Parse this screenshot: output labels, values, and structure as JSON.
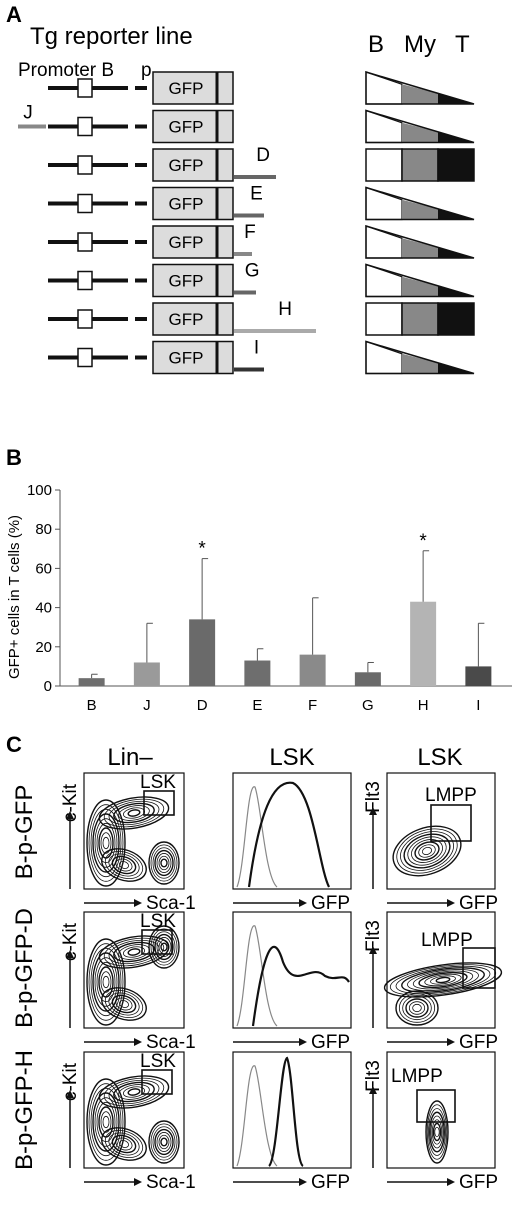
{
  "panel_a": {
    "letter": "A",
    "title": "Tg reporter line",
    "promoter_label": "Promoter B",
    "p_label": "p",
    "box_label": "GFP",
    "expr_headers": [
      "B",
      "My",
      "T"
    ],
    "rows": [
      {
        "tag": "",
        "left_ext": false,
        "tail": "none",
        "expr": "graded"
      },
      {
        "tag": "J",
        "left_ext": true,
        "tail": "none",
        "expr": "graded"
      },
      {
        "tag": "D",
        "left_ext": false,
        "tail": "D",
        "expr": "full"
      },
      {
        "tag": "E",
        "left_ext": false,
        "tail": "E",
        "expr": "graded"
      },
      {
        "tag": "F",
        "left_ext": false,
        "tail": "F",
        "expr": "graded"
      },
      {
        "tag": "G",
        "left_ext": false,
        "tail": "G",
        "expr": "graded"
      },
      {
        "tag": "H",
        "left_ext": false,
        "tail": "H",
        "expr": "full"
      },
      {
        "tag": "I",
        "left_ext": false,
        "tail": "I",
        "expr": "graded"
      }
    ]
  },
  "panel_b": {
    "letter": "B",
    "chart_data": {
      "type": "bar",
      "title": "",
      "xlabel": "",
      "ylabel": "GFP+ cells in T cells (%)",
      "ylim": [
        0,
        100
      ],
      "yticks": [
        0,
        20,
        40,
        60,
        80,
        100
      ],
      "categories": [
        "B",
        "J",
        "D",
        "E",
        "F",
        "G",
        "H",
        "I"
      ],
      "values": [
        4,
        12,
        34,
        13,
        16,
        7,
        43,
        10
      ],
      "errors": [
        2,
        20,
        31,
        6,
        29,
        5,
        26,
        22
      ],
      "significant": [
        false,
        false,
        true,
        false,
        false,
        false,
        true,
        false
      ],
      "significance_marker": "*",
      "colors": [
        "#6e6e6e",
        "#9a9a9a",
        "#6a6a6a",
        "#6e6e6e",
        "#8a8a8a",
        "#6a6a6a",
        "#b4b4b4",
        "#4a4a4a"
      ],
      "grid": false
    }
  },
  "panel_c": {
    "letter": "C",
    "col_headers": [
      "Lin–",
      "LSK",
      "LSK"
    ],
    "row_labels": [
      "B-p-GFP",
      "B-p-GFP-D",
      "B-p-GFP-H"
    ],
    "col1_axes": {
      "x": "Sca-1",
      "y": "c-Kit",
      "gate": "LSK"
    },
    "col2_axes": {
      "x": "GFP"
    },
    "col3_axes": {
      "x": "GFP",
      "y": "Flt3",
      "gate": "LMPP"
    }
  }
}
